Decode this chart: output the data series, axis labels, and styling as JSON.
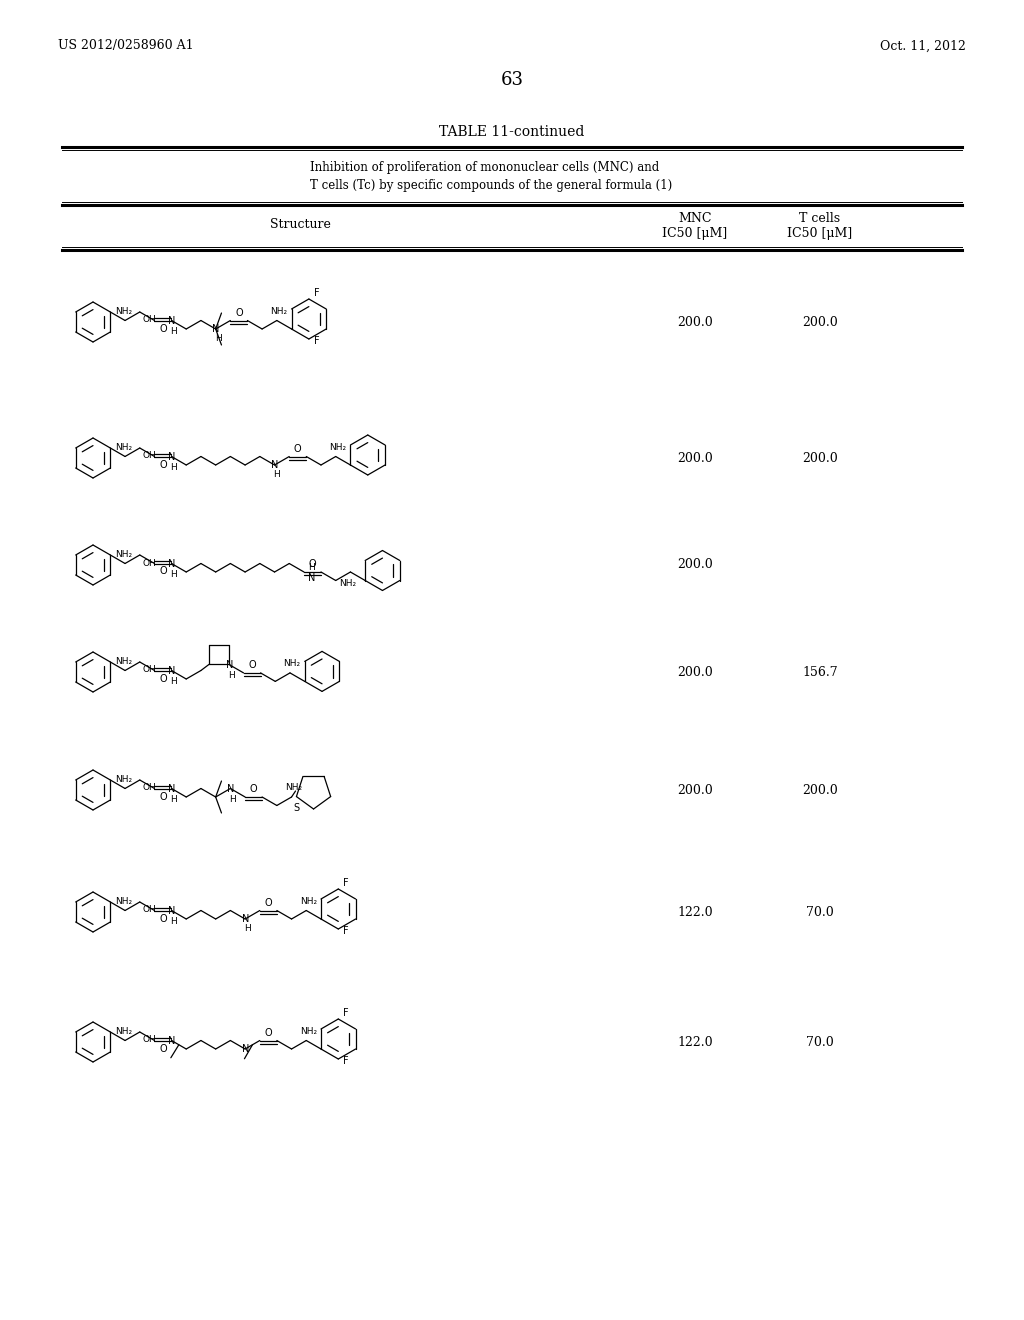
{
  "page_number": "63",
  "left_header": "US 2012/0258960 A1",
  "right_header": "Oct. 11, 2012",
  "table_title": "TABLE 11-continued",
  "table_subtitle_line1": "Inhibition of proliferation of mononuclear cells (MNC) and",
  "table_subtitle_line2": "T cells (Tc) by specific compounds of the general formula (1)",
  "col1_header": "Structure",
  "col2_header_line1": "MNC",
  "col2_header_line2": "IC50 [μM]",
  "col3_header_line1": "T cells",
  "col3_header_line2": "IC50 [μM]",
  "rows": [
    {
      "mnc": "200.0",
      "tcells": "200.0"
    },
    {
      "mnc": "200.0",
      "tcells": "200.0"
    },
    {
      "mnc": "200.0",
      "tcells": ""
    },
    {
      "mnc": "200.0",
      "tcells": "156.7"
    },
    {
      "mnc": "200.0",
      "tcells": "200.0"
    },
    {
      "mnc": "122.0",
      "tcells": "70.0"
    },
    {
      "mnc": "122.0",
      "tcells": "70.0"
    }
  ],
  "row_centers_y": [
    322,
    458,
    565,
    672,
    790,
    912,
    1042
  ],
  "background_color": "#ffffff",
  "text_color": "#000000"
}
